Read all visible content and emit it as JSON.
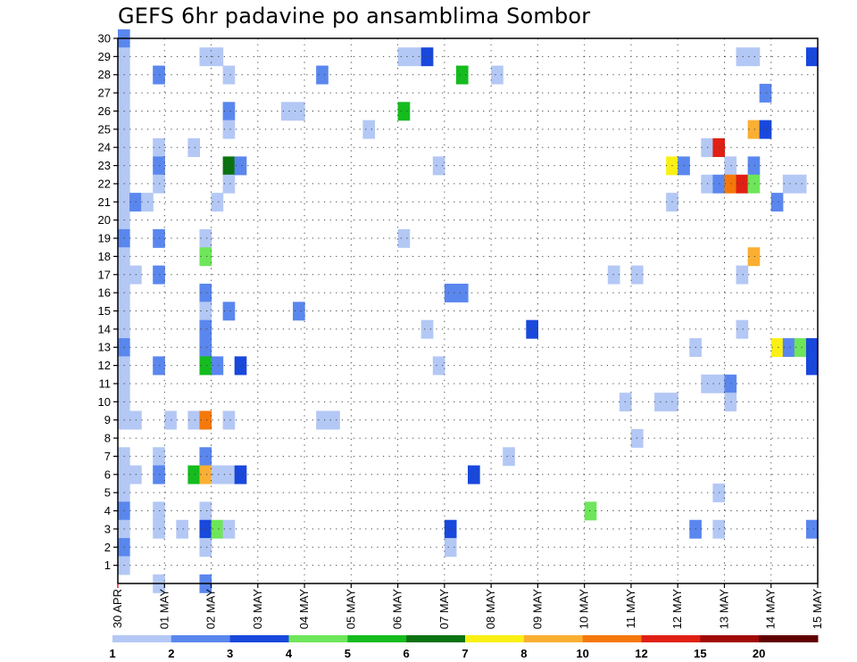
{
  "chart_data": {
    "type": "heatmap",
    "title": "GEFS 6hr padavine po ansamblima Sombor",
    "xlabel": "",
    "ylabel": "",
    "x_ticks": [
      "30 APR",
      "01 MAY",
      "02 MAY",
      "03 MAY",
      "04 MAY",
      "05 MAY",
      "06 MAY",
      "07 MAY",
      "08 MAY",
      "09 MAY",
      "10 MAY",
      "11 MAY",
      "12 MAY",
      "13 MAY",
      "14 MAY",
      "15 MAY"
    ],
    "y_ticks": [
      "1",
      "2",
      "3",
      "4",
      "5",
      "6",
      "7",
      "8",
      "9",
      "10",
      "11",
      "12",
      "13",
      "14",
      "15",
      "16",
      "17",
      "18",
      "19",
      "20",
      "21",
      "22",
      "23",
      "24",
      "25",
      "26",
      "27",
      "28",
      "29",
      "30"
    ],
    "ylim": [
      0,
      30
    ],
    "x_steps_per_day": 4,
    "n_steps": 60,
    "grid": true,
    "legend": {
      "placement": "bottom",
      "levels": [
        "1",
        "2",
        "3",
        "4",
        "5",
        "6",
        "7",
        "8",
        "10",
        "12",
        "15",
        "20"
      ],
      "colors": [
        "#b4c8f5",
        "#5a87ee",
        "#1848dc",
        "#6ee65a",
        "#14bc1e",
        "#0b7211",
        "#faf014",
        "#faaf32",
        "#f5780a",
        "#e02014",
        "#a20808",
        "#600000"
      ]
    },
    "cells": [
      [
        0,
        30,
        1
      ],
      [
        0,
        29,
        0
      ],
      [
        0,
        28,
        0
      ],
      [
        0,
        27,
        0
      ],
      [
        0,
        26,
        0
      ],
      [
        0,
        25,
        0
      ],
      [
        0,
        24,
        0
      ],
      [
        0,
        23,
        0
      ],
      [
        0,
        22,
        0
      ],
      [
        0,
        21,
        0
      ],
      [
        0,
        20,
        0
      ],
      [
        0,
        19,
        1
      ],
      [
        0,
        18,
        0
      ],
      [
        0,
        17,
        0
      ],
      [
        0,
        16,
        0
      ],
      [
        0,
        15,
        0
      ],
      [
        0,
        14,
        0
      ],
      [
        0,
        13,
        1
      ],
      [
        0,
        12,
        0
      ],
      [
        0,
        11,
        0
      ],
      [
        0,
        10,
        0
      ],
      [
        0,
        9,
        0
      ],
      [
        0,
        7,
        0
      ],
      [
        0,
        6,
        0
      ],
      [
        0,
        5,
        0
      ],
      [
        0,
        4,
        1
      ],
      [
        0,
        3,
        0
      ],
      [
        0,
        2,
        1
      ],
      [
        0,
        1,
        0
      ],
      [
        1,
        21,
        1
      ],
      [
        1,
        17,
        0
      ],
      [
        1,
        9,
        0
      ],
      [
        1,
        6,
        0
      ],
      [
        2,
        21,
        0
      ],
      [
        3,
        28,
        1
      ],
      [
        3,
        24,
        0
      ],
      [
        3,
        23,
        1
      ],
      [
        3,
        22,
        0
      ],
      [
        3,
        19,
        1
      ],
      [
        3,
        17,
        1
      ],
      [
        3,
        12,
        1
      ],
      [
        3,
        7,
        0
      ],
      [
        3,
        6,
        1
      ],
      [
        3,
        4,
        0
      ],
      [
        3,
        3,
        0
      ],
      [
        3,
        0,
        0
      ],
      [
        4,
        9,
        0
      ],
      [
        5,
        3,
        0
      ],
      [
        6,
        24,
        0
      ],
      [
        6,
        9,
        0
      ],
      [
        6,
        6,
        4
      ],
      [
        7,
        29,
        0
      ],
      [
        7,
        19,
        0
      ],
      [
        7,
        18,
        3
      ],
      [
        7,
        16,
        1
      ],
      [
        7,
        15,
        0
      ],
      [
        7,
        14,
        1
      ],
      [
        7,
        13,
        1
      ],
      [
        7,
        12,
        4
      ],
      [
        7,
        9,
        8
      ],
      [
        7,
        7,
        1
      ],
      [
        7,
        6,
        7
      ],
      [
        7,
        4,
        0
      ],
      [
        7,
        3,
        2
      ],
      [
        7,
        2,
        0
      ],
      [
        7,
        0,
        1
      ],
      [
        8,
        29,
        0
      ],
      [
        8,
        21,
        0
      ],
      [
        8,
        12,
        1
      ],
      [
        8,
        6,
        0
      ],
      [
        8,
        3,
        3
      ],
      [
        9,
        28,
        0
      ],
      [
        9,
        26,
        1
      ],
      [
        9,
        25,
        0
      ],
      [
        9,
        23,
        5
      ],
      [
        9,
        22,
        0
      ],
      [
        9,
        15,
        1
      ],
      [
        9,
        9,
        0
      ],
      [
        9,
        6,
        0
      ],
      [
        9,
        3,
        0
      ],
      [
        10,
        23,
        1
      ],
      [
        10,
        12,
        2
      ],
      [
        10,
        6,
        2
      ],
      [
        14,
        26,
        0
      ],
      [
        15,
        26,
        0
      ],
      [
        15,
        15,
        1
      ],
      [
        17,
        28,
        1
      ],
      [
        17,
        9,
        0
      ],
      [
        18,
        9,
        0
      ],
      [
        21,
        25,
        0
      ],
      [
        24,
        29,
        0
      ],
      [
        24,
        26,
        4
      ],
      [
        24,
        19,
        0
      ],
      [
        25,
        29,
        0
      ],
      [
        26,
        29,
        2
      ],
      [
        26,
        14,
        0
      ],
      [
        27,
        23,
        0
      ],
      [
        27,
        12,
        0
      ],
      [
        28,
        16,
        1
      ],
      [
        28,
        3,
        2
      ],
      [
        28,
        2,
        0
      ],
      [
        29,
        28,
        4
      ],
      [
        29,
        16,
        1
      ],
      [
        30,
        6,
        2
      ],
      [
        32,
        28,
        0
      ],
      [
        33,
        7,
        0
      ],
      [
        35,
        14,
        2
      ],
      [
        40,
        4,
        3
      ],
      [
        42,
        17,
        0
      ],
      [
        43,
        10,
        0
      ],
      [
        44,
        17,
        0
      ],
      [
        44,
        8,
        0
      ],
      [
        46,
        10,
        0
      ],
      [
        47,
        10,
        0
      ],
      [
        47,
        23,
        6
      ],
      [
        47,
        21,
        0
      ],
      [
        48,
        23,
        1
      ],
      [
        49,
        13,
        0
      ],
      [
        49,
        3,
        1
      ],
      [
        50,
        24,
        0
      ],
      [
        50,
        22,
        0
      ],
      [
        50,
        11,
        0
      ],
      [
        51,
        24,
        9
      ],
      [
        51,
        22,
        1
      ],
      [
        51,
        11,
        0
      ],
      [
        51,
        5,
        0
      ],
      [
        51,
        3,
        0
      ],
      [
        52,
        23,
        0
      ],
      [
        52,
        22,
        8
      ],
      [
        52,
        11,
        1
      ],
      [
        52,
        10,
        0
      ],
      [
        53,
        22,
        9
      ],
      [
        54,
        25,
        7
      ],
      [
        54,
        23,
        1
      ],
      [
        54,
        22,
        3
      ],
      [
        54,
        18,
        7
      ],
      [
        53,
        29,
        0
      ],
      [
        54,
        29,
        0
      ],
      [
        53,
        17,
        0
      ],
      [
        53,
        14,
        0
      ],
      [
        55,
        27,
        1
      ],
      [
        55,
        25,
        2
      ],
      [
        56,
        21,
        1
      ],
      [
        56,
        13,
        6
      ],
      [
        57,
        13,
        1
      ],
      [
        58,
        13,
        3
      ],
      [
        59,
        13,
        2
      ],
      [
        59,
        12,
        2
      ],
      [
        57,
        22,
        0
      ],
      [
        58,
        22,
        0
      ],
      [
        59,
        29,
        2
      ],
      [
        59,
        3,
        1
      ]
    ]
  }
}
